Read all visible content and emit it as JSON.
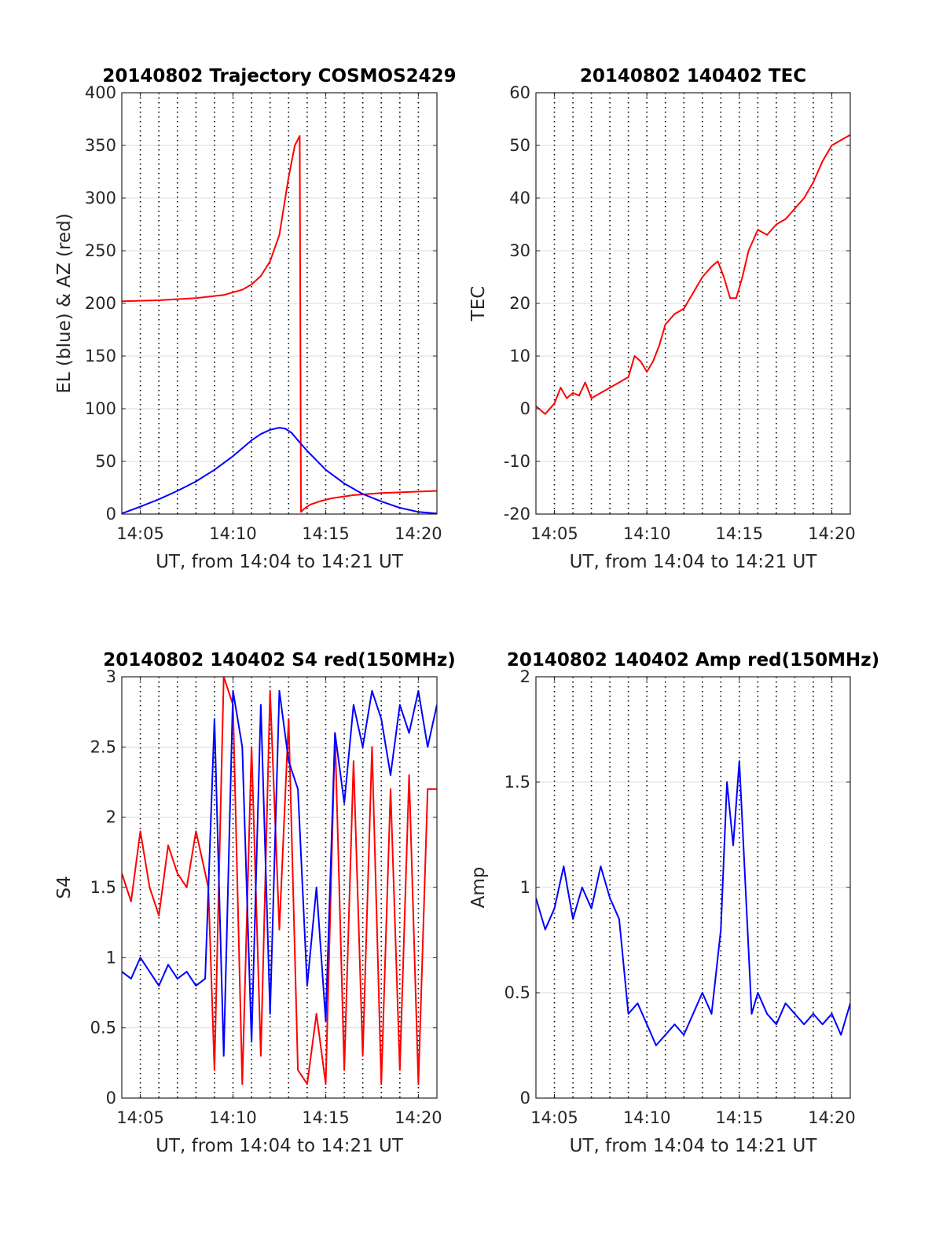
{
  "colors": {
    "el": "#0000ff",
    "az": "#ff0000",
    "tec": "#ff0000",
    "s4_a": "#ff0000",
    "s4_b": "#0000ff",
    "amp": "#0000ff"
  },
  "chart_data": [
    {
      "id": "trajectory",
      "type": "line",
      "title": "20140802 Trajectory COSMOS2429",
      "xlabel": "UT, from 14:04 to 14:21 UT",
      "ylabel": "EL (blue) & AZ (red)",
      "xlim": [
        "14:04",
        "14:21"
      ],
      "ylim": [
        0,
        400
      ],
      "yticks": [
        "0",
        "50",
        "100",
        "150",
        "200",
        "250",
        "300",
        "350",
        "400"
      ],
      "xticks": [
        "14:05",
        "14:10",
        "14:15",
        "14:20"
      ],
      "grid": true,
      "series": [
        {
          "key": "az",
          "x": [
            "14:04:00",
            "14:06:00",
            "14:08:00",
            "14:09:30",
            "14:10:30",
            "14:11:00",
            "14:11:30",
            "14:12:00",
            "14:12:30",
            "14:13:00",
            "14:13:20",
            "14:13:36",
            "14:13:40",
            "14:13:50",
            "14:14:10",
            "14:14:40",
            "14:15:20",
            "14:16:30",
            "14:18:00",
            "14:19:30",
            "14:21:00"
          ],
          "values": [
            202,
            203,
            205,
            208,
            213,
            218,
            226,
            240,
            265,
            320,
            350,
            359,
            2,
            5,
            9,
            12,
            15,
            18,
            20,
            21,
            22
          ]
        },
        {
          "key": "el",
          "x": [
            "14:04:00",
            "14:05:00",
            "14:06:00",
            "14:07:00",
            "14:08:00",
            "14:09:00",
            "14:10:00",
            "14:11:00",
            "14:11:30",
            "14:12:00",
            "14:12:30",
            "14:12:50",
            "14:13:10",
            "14:13:30",
            "14:14:00",
            "14:15:00",
            "14:16:00",
            "14:17:00",
            "14:18:00",
            "14:19:00",
            "14:20:00",
            "14:21:00"
          ],
          "values": [
            0.5,
            7,
            14,
            22,
            31,
            42,
            55,
            70,
            76,
            80,
            82,
            81,
            77,
            70,
            60,
            42,
            29,
            19,
            12,
            6,
            2,
            0.5
          ]
        }
      ]
    },
    {
      "id": "tec",
      "type": "line",
      "title": "20140802 140402 TEC",
      "xlabel": "UT, from 14:04 to 14:21 UT",
      "ylabel": "TEC",
      "xlim": [
        "14:04",
        "14:21"
      ],
      "ylim": [
        -20,
        60
      ],
      "yticks": [
        "-20",
        "-10",
        "0",
        "10",
        "20",
        "30",
        "40",
        "50",
        "60"
      ],
      "xticks": [
        "14:05",
        "14:10",
        "14:15",
        "14:20"
      ],
      "grid": true,
      "series": [
        {
          "key": "tec",
          "x": [
            "14:04:00",
            "14:04:30",
            "14:05:00",
            "14:05:20",
            "14:05:40",
            "14:06:00",
            "14:06:20",
            "14:06:40",
            "14:07:00",
            "14:07:30",
            "14:08:00",
            "14:08:30",
            "14:09:00",
            "14:09:20",
            "14:09:40",
            "14:10:00",
            "14:10:20",
            "14:10:40",
            "14:11:00",
            "14:11:30",
            "14:12:00",
            "14:12:30",
            "14:13:00",
            "14:13:30",
            "14:13:50",
            "14:14:10",
            "14:14:30",
            "14:14:50",
            "14:15:10",
            "14:15:30",
            "14:16:00",
            "14:16:30",
            "14:17:00",
            "14:17:30",
            "14:18:00",
            "14:18:30",
            "14:19:00",
            "14:19:30",
            "14:20:00",
            "14:20:30",
            "14:21:00"
          ],
          "values": [
            0.5,
            -1,
            1,
            4,
            2,
            3,
            2.5,
            5,
            2,
            3,
            4,
            5,
            6,
            10,
            9,
            7,
            9,
            12,
            16,
            18,
            19,
            22,
            25,
            27,
            28,
            25,
            21,
            21,
            25,
            30,
            34,
            33,
            35,
            36,
            38,
            40,
            43,
            47,
            50,
            51,
            52
          ]
        }
      ]
    },
    {
      "id": "s4",
      "type": "line",
      "title": "20140802 140402 S4 red(150MHz)",
      "xlabel": "UT, from 14:04 to 14:21 UT",
      "ylabel": "S4",
      "xlim": [
        "14:04",
        "14:21"
      ],
      "ylim": [
        0,
        3
      ],
      "yticks": [
        "0",
        "0.5",
        "1",
        "1.5",
        "2",
        "2.5",
        "3"
      ],
      "xticks": [
        "14:05",
        "14:10",
        "14:15",
        "14:20"
      ],
      "grid": true,
      "series": [
        {
          "key": "s4_a",
          "x": [
            "14:04:00",
            "14:04:30",
            "14:05:00",
            "14:05:30",
            "14:06:00",
            "14:06:30",
            "14:07:00",
            "14:07:30",
            "14:08:00",
            "14:08:40",
            "14:09:00",
            "14:09:30",
            "14:10:00",
            "14:10:30",
            "14:11:00",
            "14:11:30",
            "14:12:00",
            "14:12:30",
            "14:13:00",
            "14:13:30",
            "14:14:00",
            "14:14:30",
            "14:15:00",
            "14:15:30",
            "14:16:00",
            "14:16:30",
            "14:17:00",
            "14:17:30",
            "14:18:00",
            "14:18:30",
            "14:19:00",
            "14:19:30",
            "14:20:00",
            "14:20:30",
            "14:21:00"
          ],
          "values": [
            1.6,
            1.4,
            1.9,
            1.5,
            1.3,
            1.8,
            1.6,
            1.5,
            1.9,
            1.5,
            0.2,
            3,
            2.8,
            0.1,
            2.5,
            0.3,
            2.9,
            1.2,
            2.7,
            0.2,
            0.1,
            0.6,
            0.1,
            2.6,
            0.2,
            2.4,
            0.3,
            2.5,
            0.1,
            2.2,
            0.2,
            2.3,
            0.1,
            2.2,
            2.2
          ]
        },
        {
          "key": "s4_b",
          "x": [
            "14:04:00",
            "14:04:30",
            "14:05:00",
            "14:05:30",
            "14:06:00",
            "14:06:30",
            "14:07:00",
            "14:07:30",
            "14:08:00",
            "14:08:30",
            "14:09:00",
            "14:09:30",
            "14:10:00",
            "14:10:30",
            "14:11:00",
            "14:11:30",
            "14:12:00",
            "14:12:30",
            "14:13:00",
            "14:13:30",
            "14:14:00",
            "14:14:30",
            "14:15:00",
            "14:15:30",
            "14:16:00",
            "14:16:30",
            "14:17:00",
            "14:17:30",
            "14:18:00",
            "14:18:30",
            "14:19:00",
            "14:19:30",
            "14:20:00",
            "14:20:30",
            "14:21:00"
          ],
          "values": [
            0.9,
            0.85,
            1,
            0.9,
            0.8,
            0.95,
            0.85,
            0.9,
            0.8,
            0.85,
            2.7,
            0.3,
            2.9,
            2.5,
            0.4,
            2.8,
            0.6,
            2.9,
            2.4,
            2.2,
            0.8,
            1.5,
            0.55,
            2.6,
            2.1,
            2.8,
            2.5,
            2.9,
            2.7,
            2.3,
            2.8,
            2.6,
            2.9,
            2.5,
            2.8
          ]
        }
      ]
    },
    {
      "id": "amp",
      "type": "line",
      "title": "20140802 140402 Amp red(150MHz)",
      "xlabel": "UT, from 14:04 to 14:21 UT",
      "ylabel": "Amp",
      "xlim": [
        "14:04",
        "14:21"
      ],
      "ylim": [
        0,
        2
      ],
      "yticks": [
        "0",
        "0.5",
        "1",
        "1.5",
        "2"
      ],
      "xticks": [
        "14:05",
        "14:10",
        "14:15",
        "14:20"
      ],
      "grid": true,
      "series": [
        {
          "key": "amp",
          "x": [
            "14:04:00",
            "14:04:30",
            "14:05:00",
            "14:05:30",
            "14:06:00",
            "14:06:30",
            "14:07:00",
            "14:07:30",
            "14:08:00",
            "14:08:30",
            "14:09:00",
            "14:09:30",
            "14:10:00",
            "14:10:30",
            "14:11:00",
            "14:11:30",
            "14:12:00",
            "14:12:30",
            "14:13:00",
            "14:13:30",
            "14:14:00",
            "14:14:20",
            "14:14:40",
            "14:15:00",
            "14:15:20",
            "14:15:40",
            "14:16:00",
            "14:16:30",
            "14:17:00",
            "14:17:30",
            "14:18:00",
            "14:18:30",
            "14:19:00",
            "14:19:30",
            "14:20:00",
            "14:20:30",
            "14:21:00"
          ],
          "values": [
            0.95,
            0.8,
            0.9,
            1.1,
            0.85,
            1.0,
            0.9,
            1.1,
            0.95,
            0.85,
            0.4,
            0.45,
            0.35,
            0.25,
            0.3,
            0.35,
            0.3,
            0.4,
            0.5,
            0.4,
            0.8,
            1.5,
            1.2,
            1.6,
            1.0,
            0.4,
            0.5,
            0.4,
            0.35,
            0.45,
            0.4,
            0.35,
            0.4,
            0.35,
            0.4,
            0.3,
            0.45
          ]
        }
      ]
    }
  ]
}
